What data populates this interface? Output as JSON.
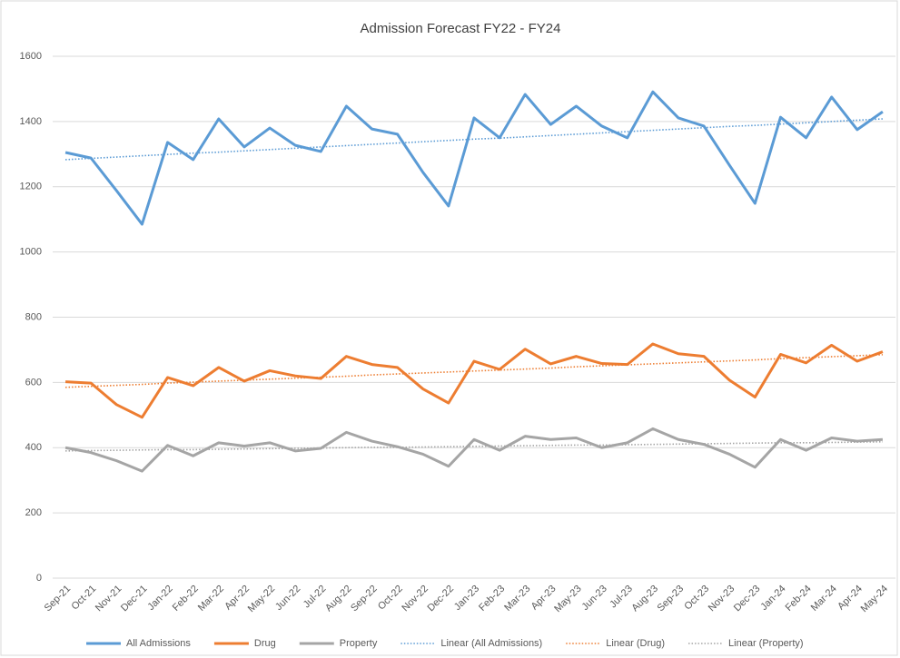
{
  "chart_data": {
    "type": "line",
    "title": "Admission Forecast FY22 - FY24",
    "categories": [
      "Sep-21",
      "Oct-21",
      "Nov-21",
      "Dec-21",
      "Jan-22",
      "Feb-22",
      "Mar-22",
      "Apr-22",
      "May-22",
      "Jun-22",
      "Jul-22",
      "Aug-22",
      "Sep-22",
      "Oct-22",
      "Nov-22",
      "Dec-22",
      "Jan-23",
      "Feb-23",
      "Mar-23",
      "Apr-23",
      "May-23",
      "Jun-23",
      "Jul-23",
      "Aug-23",
      "Sep-23",
      "Oct-23",
      "Nov-23",
      "Dec-23",
      "Jan-24",
      "Feb-24",
      "Mar-24",
      "Apr-24",
      "May-24"
    ],
    "series": [
      {
        "name": "All Admissions",
        "color": "#5b9bd5",
        "dashed": false,
        "values": [
          1305,
          1288,
          1188,
          1085,
          1336,
          1283,
          1408,
          1322,
          1380,
          1327,
          1308,
          1447,
          1377,
          1361,
          1244,
          1141,
          1411,
          1350,
          1483,
          1391,
          1447,
          1386,
          1350,
          1491,
          1411,
          1386,
          1266,
          1149,
          1413,
          1350,
          1475,
          1375,
          1430
        ]
      },
      {
        "name": "Drug",
        "color": "#ed7d31",
        "dashed": false,
        "values": [
          602,
          598,
          532,
          493,
          615,
          590,
          646,
          604,
          636,
          620,
          612,
          680,
          655,
          646,
          580,
          537,
          665,
          640,
          702,
          657,
          680,
          658,
          655,
          718,
          688,
          680,
          607,
          555,
          686,
          660,
          714,
          665,
          694
        ]
      },
      {
        "name": "Property",
        "color": "#a5a5a5",
        "dashed": false,
        "values": [
          400,
          385,
          360,
          328,
          407,
          375,
          415,
          405,
          415,
          390,
          398,
          447,
          420,
          403,
          380,
          343,
          425,
          392,
          435,
          425,
          430,
          400,
          415,
          458,
          425,
          410,
          380,
          340,
          425,
          392,
          430,
          420,
          425
        ]
      },
      {
        "name": "Linear (All Admissions)",
        "color": "#5b9bd5",
        "dashed": true,
        "values": [
          1283,
          1287,
          1291,
          1295,
          1299,
          1303,
          1306,
          1310,
          1314,
          1318,
          1322,
          1326,
          1330,
          1334,
          1338,
          1342,
          1346,
          1349,
          1353,
          1357,
          1361,
          1365,
          1369,
          1373,
          1377,
          1381,
          1385,
          1388,
          1392,
          1396,
          1400,
          1404,
          1408
        ]
      },
      {
        "name": "Linear (Drug)",
        "color": "#ed7d31",
        "dashed": true,
        "values": [
          585,
          588,
          591,
          594,
          598,
          601,
          604,
          607,
          610,
          613,
          616,
          619,
          623,
          626,
          629,
          632,
          635,
          638,
          641,
          644,
          648,
          651,
          654,
          657,
          660,
          663,
          666,
          669,
          673,
          676,
          679,
          682,
          685
        ]
      },
      {
        "name": "Linear (Property)",
        "color": "#a5a5a5",
        "dashed": true,
        "values": [
          390,
          391,
          392,
          393,
          394,
          394,
          395,
          396,
          397,
          398,
          399,
          400,
          401,
          401,
          402,
          403,
          404,
          405,
          406,
          407,
          408,
          408,
          409,
          410,
          411,
          412,
          413,
          414,
          415,
          415,
          416,
          417,
          418
        ]
      }
    ],
    "ylim": [
      0,
      1600
    ],
    "yticks": [
      0,
      200,
      400,
      600,
      800,
      1000,
      1200,
      1400,
      1600
    ],
    "grid": true,
    "legend": "bottom"
  }
}
